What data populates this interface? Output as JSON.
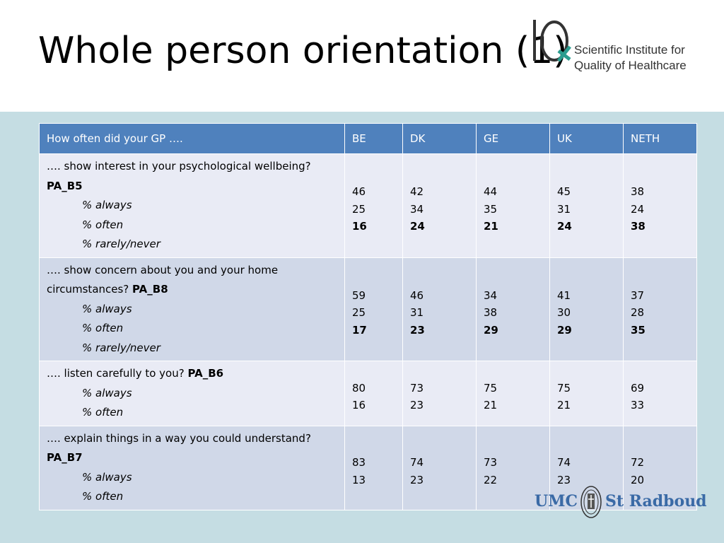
{
  "slide": {
    "title": "Whole person orientation (1)"
  },
  "logo_iq": {
    "mark_text": "IQ",
    "line1": "Scientific Institute for",
    "line2": "Quality of Healthcare"
  },
  "logo_umc": {
    "left": "UMC",
    "right": "St Radboud"
  },
  "table": {
    "headers": [
      "How often did your GP ….",
      "BE",
      "DK",
      "GE",
      "UK",
      "NETH"
    ],
    "rows": [
      {
        "question": "…. show interest in your psychological wellbeing?",
        "code": "PA_B5",
        "options": [
          "% always",
          "% often",
          "% rarely/never"
        ],
        "values": {
          "BE": [
            "46",
            "25",
            "16"
          ],
          "DK": [
            "42",
            "34",
            "24"
          ],
          "GE": [
            "44",
            "35",
            "21"
          ],
          "UK": [
            "45",
            "31",
            "24"
          ],
          "NETH": [
            "38",
            "24",
            "38"
          ]
        }
      },
      {
        "question": "…. show concern about you and your home circumstances?",
        "code": "PA_B8",
        "options": [
          "% always",
          "% often",
          "% rarely/never"
        ],
        "values": {
          "BE": [
            "59",
            "25",
            "17"
          ],
          "DK": [
            "46",
            "31",
            "23"
          ],
          "GE": [
            "34",
            "38",
            "29"
          ],
          "UK": [
            "41",
            "30",
            "29"
          ],
          "NETH": [
            "37",
            "28",
            "35"
          ]
        }
      },
      {
        "question": "…. listen carefully to you?",
        "code": "PA_B6",
        "options": [
          "% always",
          "% often"
        ],
        "values": {
          "BE": [
            "80",
            "16"
          ],
          "DK": [
            "73",
            "23"
          ],
          "GE": [
            "75",
            "21"
          ],
          "UK": [
            "75",
            "21"
          ],
          "NETH": [
            "69",
            "33"
          ]
        }
      },
      {
        "question": "…. explain things in a way you could understand?",
        "code": "PA_B7",
        "options": [
          "% always",
          "% often"
        ],
        "values": {
          "BE": [
            "83",
            "13"
          ],
          "DK": [
            "74",
            "23"
          ],
          "GE": [
            "73",
            "22"
          ],
          "UK": [
            "74",
            "23"
          ],
          "NETH": [
            "72",
            "20"
          ]
        }
      }
    ]
  }
}
